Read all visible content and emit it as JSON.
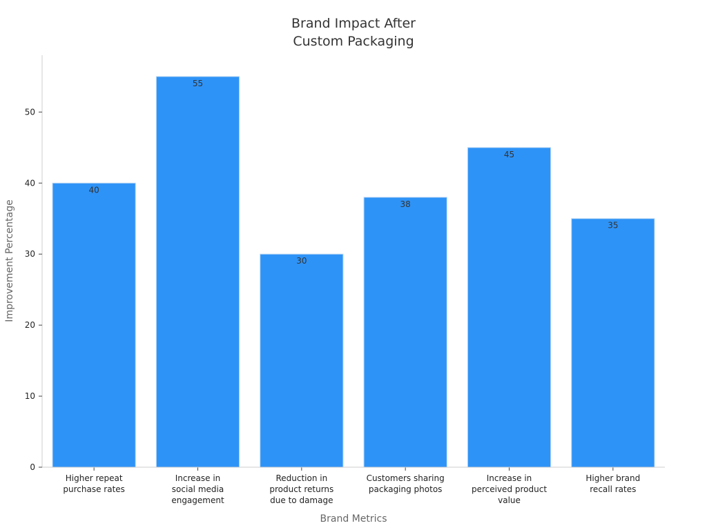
{
  "chart_data": {
    "type": "bar",
    "title": [
      "Brand Impact After",
      "Custom Packaging"
    ],
    "categories": [
      [
        "Higher repeat",
        "purchase rates"
      ],
      [
        "Increase in",
        "social media",
        "engagement"
      ],
      [
        "Reduction in",
        "product returns",
        "due to damage"
      ],
      [
        "Customers sharing",
        "packaging photos"
      ],
      [
        "Increase in",
        "perceived product",
        "value"
      ],
      [
        "Higher brand",
        "recall rates"
      ]
    ],
    "values": [
      40,
      55,
      30,
      38,
      45,
      35
    ],
    "xlabel": "Brand Metrics",
    "ylabel": "Improvement Percentage",
    "ylim": [
      0,
      58
    ],
    "yticks": [
      0,
      10,
      20,
      30,
      40,
      50
    ],
    "grid": false,
    "data_labels": true,
    "colors": {
      "bar": "#2E93F7",
      "bar_edge": "#BFD9F2",
      "axis": "#CCCCCC",
      "text": "#222222"
    }
  }
}
